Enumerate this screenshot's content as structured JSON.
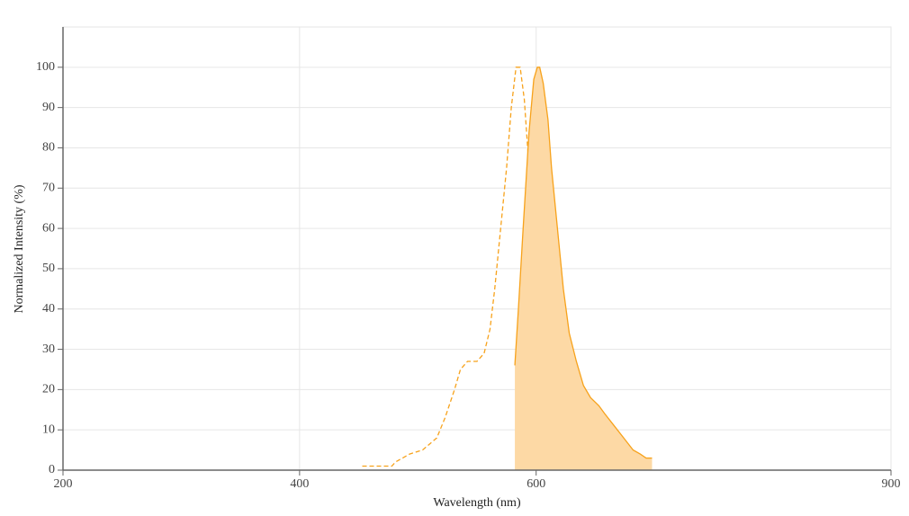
{
  "chart_data": {
    "type": "line",
    "x_label": "Wavelength (nm)",
    "y_label": "Normalized Intensity (%)",
    "xlim": [
      200,
      900
    ],
    "xticks": [
      200,
      400,
      600,
      900
    ],
    "ylim": [
      0,
      110
    ],
    "yticks": [
      0,
      10,
      20,
      30,
      40,
      50,
      60,
      70,
      80,
      90,
      100
    ],
    "grid": true,
    "series": [
      {
        "color": "#f7a21b",
        "dashed": true,
        "filled": false,
        "x": [
          453,
          478,
          481,
          493,
          504,
          516,
          523,
          531,
          536,
          542,
          550,
          556,
          561,
          565,
          570,
          575,
          579,
          583,
          586.5,
          590,
          594,
          598,
          603,
          606,
          608
        ],
        "values": [
          1,
          1,
          2,
          4,
          5,
          8,
          13,
          20,
          25,
          27,
          27,
          29,
          35,
          45,
          60,
          75,
          90,
          100,
          100,
          92,
          75,
          50,
          30,
          24,
          0
        ]
      },
      {
        "color": "#f7a21b",
        "dashed": false,
        "filled": true,
        "fill_color": "#fdd9a5",
        "x": [
          582,
          585,
          589,
          594,
          598,
          601,
          603,
          606,
          610,
          613,
          618,
          623,
          628,
          634,
          640,
          646,
          653,
          658,
          666,
          674,
          682,
          688,
          693,
          698
        ],
        "values": [
          26,
          40,
          60,
          84,
          97,
          100,
          100,
          96,
          87,
          75,
          60,
          45,
          34,
          27,
          21,
          18,
          16,
          14,
          11,
          8,
          5,
          4,
          3,
          3
        ]
      }
    ]
  }
}
